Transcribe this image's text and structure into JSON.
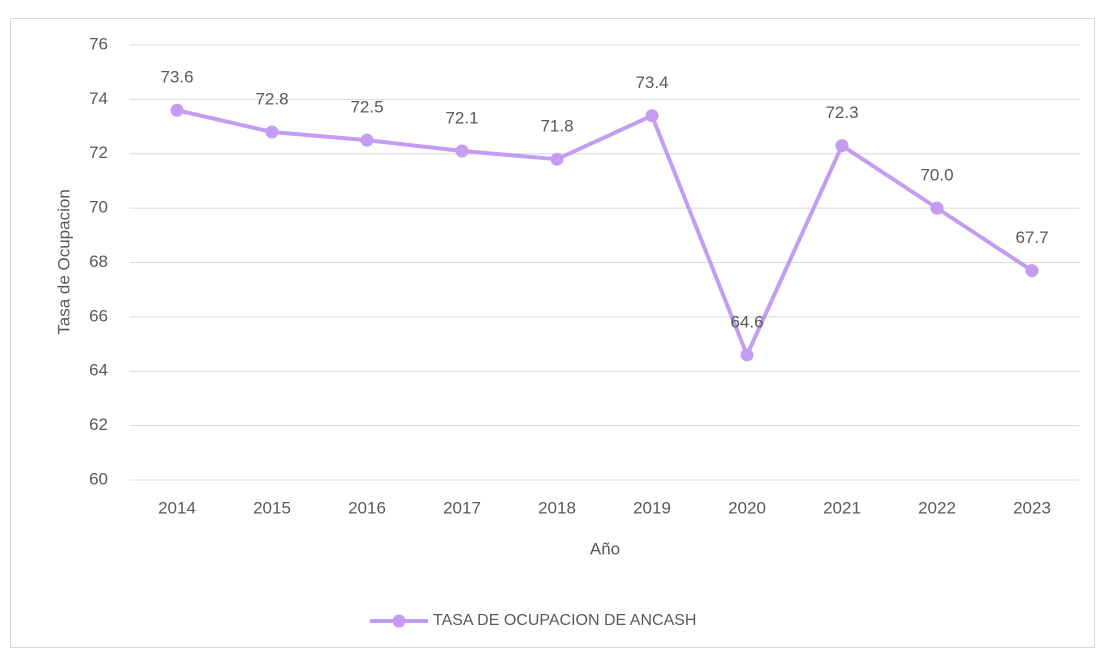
{
  "chart_data": {
    "type": "line",
    "x_label": "Año",
    "y_label": "Tasa de Ocupacion",
    "categories": [
      "2014",
      "2015",
      "2016",
      "2017",
      "2018",
      "2019",
      "2020",
      "2021",
      "2022",
      "2023"
    ],
    "series": [
      {
        "name": "TASA DE OCUPACION DE ANCASH",
        "color": "#c49cf2",
        "values": [
          73.6,
          72.8,
          72.5,
          72.1,
          71.8,
          73.4,
          64.6,
          72.3,
          70.0,
          67.7
        ],
        "value_labels": [
          "73.6",
          "72.8",
          "72.5",
          "72.1",
          "71.8",
          "73.4",
          "64.6",
          "72.3",
          "70.0",
          "67.7"
        ]
      }
    ],
    "ylim": [
      60,
      76
    ],
    "yticks": [
      60,
      62,
      64,
      66,
      68,
      70,
      72,
      74,
      76
    ],
    "grid": true,
    "legend": "bottom"
  }
}
